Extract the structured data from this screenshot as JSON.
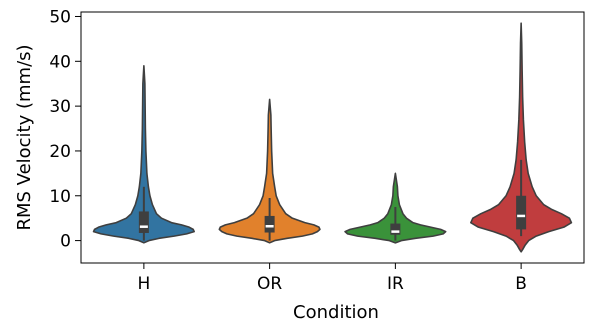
{
  "chart_data": {
    "type": "violin",
    "xlabel": "Condition",
    "ylabel": "RMS Velocity (mm/s)",
    "ylim": [
      -5,
      51
    ],
    "yticks": [
      0,
      10,
      20,
      30,
      40,
      50
    ],
    "grid": false,
    "categories": [
      "H",
      "OR",
      "IR",
      "B"
    ],
    "colors": [
      "#3274a1",
      "#e1812c",
      "#3a923a",
      "#c03d3e"
    ],
    "edge_color": "#3f3f3f",
    "violins": [
      {
        "name": "H",
        "range": [
          -0.5,
          39
        ],
        "quartiles": [
          1.7,
          3.1,
          6.5
        ],
        "whiskers": [
          0,
          12
        ],
        "profile": [
          [
            -0.5,
            0.0
          ],
          [
            0.0,
            0.1
          ],
          [
            0.5,
            0.3
          ],
          [
            1.0,
            0.6
          ],
          [
            1.5,
            0.85
          ],
          [
            2.0,
            1.0
          ],
          [
            2.5,
            0.98
          ],
          [
            3.0,
            0.9
          ],
          [
            3.5,
            0.75
          ],
          [
            4.0,
            0.55
          ],
          [
            5.0,
            0.35
          ],
          [
            6.0,
            0.25
          ],
          [
            8.0,
            0.17
          ],
          [
            10.0,
            0.12
          ],
          [
            12.0,
            0.09
          ],
          [
            15.0,
            0.06
          ],
          [
            20.0,
            0.04
          ],
          [
            25.0,
            0.03
          ],
          [
            30.0,
            0.025
          ],
          [
            35.0,
            0.02
          ],
          [
            39.0,
            0.0
          ]
        ]
      },
      {
        "name": "OR",
        "range": [
          -0.5,
          31.5
        ],
        "quartiles": [
          1.8,
          3.2,
          5.5
        ],
        "whiskers": [
          0,
          9.5
        ],
        "profile": [
          [
            -0.5,
            0.0
          ],
          [
            0.0,
            0.1
          ],
          [
            0.5,
            0.35
          ],
          [
            1.0,
            0.65
          ],
          [
            1.5,
            0.85
          ],
          [
            2.0,
            0.95
          ],
          [
            2.5,
            1.0
          ],
          [
            3.0,
            0.98
          ],
          [
            3.5,
            0.88
          ],
          [
            4.0,
            0.7
          ],
          [
            5.0,
            0.45
          ],
          [
            6.0,
            0.32
          ],
          [
            8.0,
            0.2
          ],
          [
            10.0,
            0.13
          ],
          [
            12.0,
            0.1
          ],
          [
            15.0,
            0.06
          ],
          [
            20.0,
            0.04
          ],
          [
            25.0,
            0.03
          ],
          [
            28.0,
            0.025
          ],
          [
            31.5,
            0.0
          ]
        ]
      },
      {
        "name": "IR",
        "range": [
          -0.5,
          15
        ],
        "quartiles": [
          1.3,
          2.0,
          3.8
        ],
        "whiskers": [
          0,
          7.5
        ],
        "profile": [
          [
            -0.5,
            0.0
          ],
          [
            0.0,
            0.12
          ],
          [
            0.5,
            0.4
          ],
          [
            1.0,
            0.75
          ],
          [
            1.5,
            0.95
          ],
          [
            2.0,
            1.0
          ],
          [
            2.5,
            0.9
          ],
          [
            3.0,
            0.7
          ],
          [
            3.5,
            0.5
          ],
          [
            4.0,
            0.35
          ],
          [
            5.0,
            0.22
          ],
          [
            6.0,
            0.15
          ],
          [
            8.0,
            0.08
          ],
          [
            10.0,
            0.05
          ],
          [
            12.0,
            0.04
          ],
          [
            15.0,
            0.0
          ]
        ]
      },
      {
        "name": "B",
        "range": [
          -2.5,
          48.5
        ],
        "quartiles": [
          2.5,
          5.5,
          10
        ],
        "whiskers": [
          1,
          18
        ],
        "profile": [
          [
            -2.5,
            0.0
          ],
          [
            -2.0,
            0.03
          ],
          [
            -1.0,
            0.08
          ],
          [
            0.0,
            0.15
          ],
          [
            1.0,
            0.3
          ],
          [
            2.0,
            0.55
          ],
          [
            3.0,
            0.85
          ],
          [
            4.0,
            1.0
          ],
          [
            5.0,
            0.96
          ],
          [
            6.0,
            0.8
          ],
          [
            7.0,
            0.6
          ],
          [
            8.0,
            0.45
          ],
          [
            10.0,
            0.3
          ],
          [
            12.0,
            0.22
          ],
          [
            15.0,
            0.14
          ],
          [
            18.0,
            0.1
          ],
          [
            22.0,
            0.07
          ],
          [
            27.0,
            0.045
          ],
          [
            32.0,
            0.03
          ],
          [
            38.0,
            0.02
          ],
          [
            44.0,
            0.012
          ],
          [
            48.5,
            0.0
          ]
        ]
      }
    ]
  }
}
